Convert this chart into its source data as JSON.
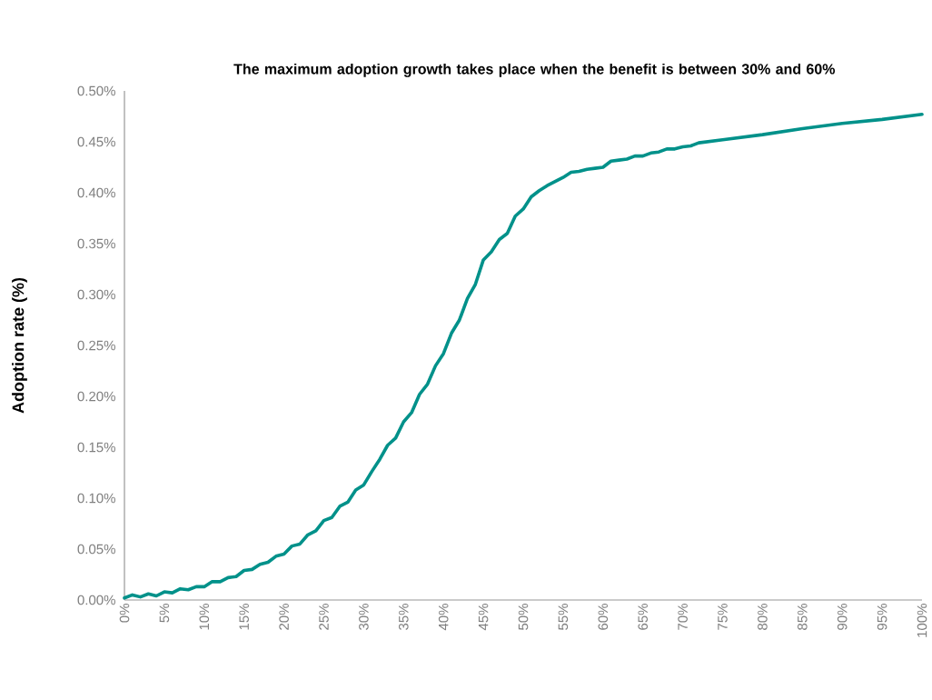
{
  "chart_data": {
    "type": "line",
    "title": "The maximum adoption growth takes place when the benefit is between 30% and 60%",
    "ylabel": "Adoption rate (%)",
    "x": [
      0,
      1,
      2,
      3,
      4,
      5,
      6,
      7,
      8,
      9,
      10,
      11,
      12,
      13,
      14,
      15,
      16,
      17,
      18,
      19,
      20,
      21,
      22,
      23,
      24,
      25,
      26,
      27,
      28,
      29,
      30,
      31,
      32,
      33,
      34,
      35,
      36,
      37,
      38,
      39,
      40,
      41,
      42,
      43,
      44,
      45,
      46,
      47,
      48,
      49,
      50,
      51,
      52,
      53,
      54,
      55,
      56,
      57,
      58,
      59,
      60,
      61,
      62,
      63,
      64,
      65,
      66,
      67,
      68,
      69,
      70,
      71,
      72,
      75,
      80,
      85,
      90,
      95,
      100
    ],
    "series": [
      {
        "color": "#00918a",
        "values": [
          0.002,
          0.005,
          0.003,
          0.006,
          0.004,
          0.008,
          0.007,
          0.011,
          0.01,
          0.013,
          0.013,
          0.018,
          0.018,
          0.022,
          0.023,
          0.029,
          0.03,
          0.035,
          0.037,
          0.043,
          0.045,
          0.053,
          0.055,
          0.064,
          0.068,
          0.078,
          0.081,
          0.092,
          0.096,
          0.108,
          0.113,
          0.126,
          0.138,
          0.152,
          0.159,
          0.175,
          0.184,
          0.202,
          0.212,
          0.23,
          0.242,
          0.262,
          0.275,
          0.296,
          0.31,
          0.334,
          0.342,
          0.354,
          0.36,
          0.377,
          0.384,
          0.396,
          0.402,
          0.407,
          0.411,
          0.415,
          0.42,
          0.421,
          0.423,
          0.424,
          0.425,
          0.431,
          0.432,
          0.433,
          0.436,
          0.436,
          0.439,
          0.44,
          0.443,
          0.443,
          0.445,
          0.446,
          0.449,
          0.452,
          0.457,
          0.463,
          0.468,
          0.472,
          0.477
        ]
      }
    ],
    "xlim": [
      0,
      100
    ],
    "xticks": [
      {
        "value": 0,
        "label": "0%"
      },
      {
        "value": 5,
        "label": "5%"
      },
      {
        "value": 10,
        "label": "10%"
      },
      {
        "value": 15,
        "label": "15%"
      },
      {
        "value": 20,
        "label": "20%"
      },
      {
        "value": 25,
        "label": "25%"
      },
      {
        "value": 30,
        "label": "30%"
      },
      {
        "value": 35,
        "label": "35%"
      },
      {
        "value": 40,
        "label": "40%"
      },
      {
        "value": 45,
        "label": "45%"
      },
      {
        "value": 50,
        "label": "50%"
      },
      {
        "value": 55,
        "label": "55%"
      },
      {
        "value": 60,
        "label": "60%"
      },
      {
        "value": 65,
        "label": "65%"
      },
      {
        "value": 70,
        "label": "70%"
      },
      {
        "value": 75,
        "label": "75%"
      },
      {
        "value": 80,
        "label": "80%"
      },
      {
        "value": 85,
        "label": "85%"
      },
      {
        "value": 90,
        "label": "90%"
      },
      {
        "value": 95,
        "label": "95%"
      },
      {
        "value": 100,
        "label": "100%"
      }
    ],
    "ylim": [
      0,
      0.5
    ],
    "yticks": [
      {
        "value": 0,
        "label": "0.00%"
      },
      {
        "value": 0.05,
        "label": "0.05%"
      },
      {
        "value": 0.1,
        "label": "0.10%"
      },
      {
        "value": 0.15,
        "label": "0.15%"
      },
      {
        "value": 0.2,
        "label": "0.20%"
      },
      {
        "value": 0.25,
        "label": "0.25%"
      },
      {
        "value": 0.3,
        "label": "0.30%"
      },
      {
        "value": 0.35,
        "label": "0.35%"
      },
      {
        "value": 0.4,
        "label": "0.40%"
      },
      {
        "value": 0.45,
        "label": "0.45%"
      },
      {
        "value": 0.5,
        "label": "0.50%"
      }
    ],
    "grid": false,
    "legend": false,
    "marker": "none",
    "line_style": "solid"
  }
}
